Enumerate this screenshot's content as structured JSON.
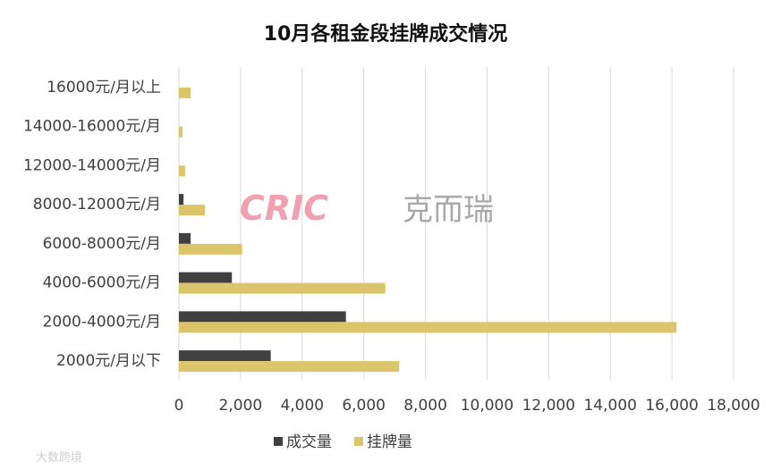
{
  "chart_data": {
    "type": "bar",
    "orientation": "horizontal",
    "title": "10月各租金段挂牌成交情况",
    "categories": [
      "16000元/月以上",
      "14000-16000元/月",
      "12000-14000元/月",
      "8000-12000元/月",
      "6000-8000元/月",
      "4000-6000元/月",
      "2000-4000元/月",
      "2000元/月以下"
    ],
    "series": [
      {
        "name": "成交量",
        "color": "#404040",
        "values": [
          0,
          0,
          0,
          150,
          380,
          1720,
          5420,
          2980
        ]
      },
      {
        "name": "挂牌量",
        "color": "#dcc46a",
        "values": [
          380,
          120,
          200,
          850,
          2050,
          6700,
          16150,
          7150
        ]
      }
    ],
    "xlim": [
      0,
      18000
    ],
    "xticks": [
      "0",
      "2,000",
      "4,000",
      "6,000",
      "8,000",
      "10,000",
      "12,000",
      "14,000",
      "16,000",
      "18,000"
    ],
    "grid": true,
    "legend_position": "bottom"
  },
  "watermark": {
    "brand": "CRIC",
    "name": "克而瑞"
  },
  "corner_mark": "大数跨境"
}
